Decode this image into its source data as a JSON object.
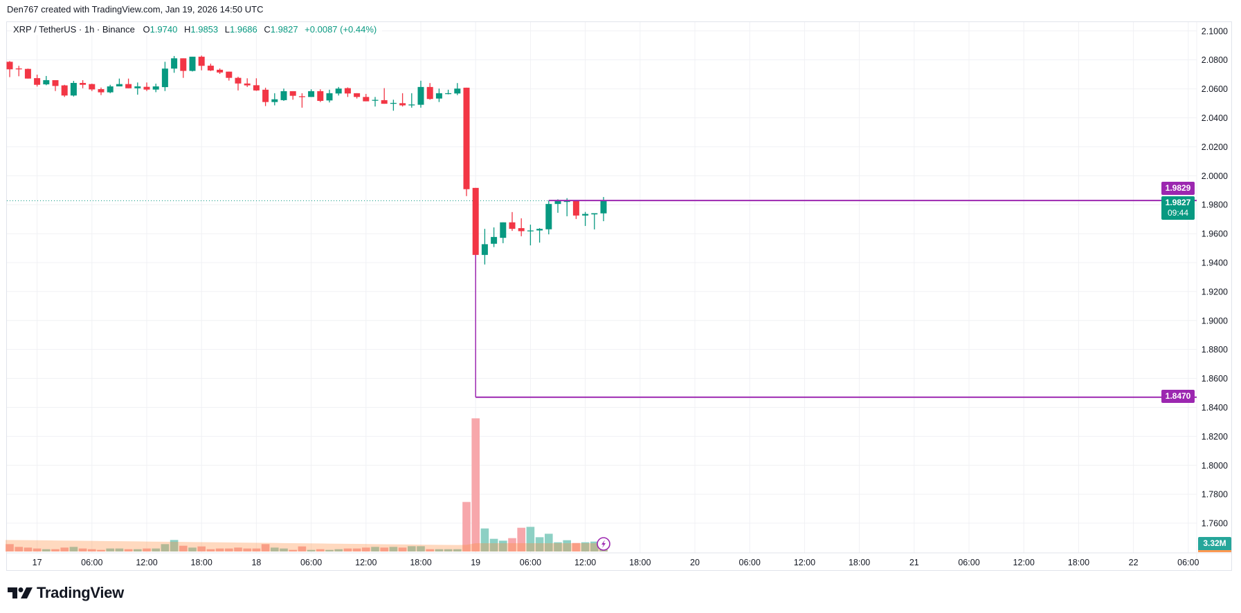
{
  "header": {
    "credit": "Den767 created with TradingView.com, Jan 19, 2026 14:50 UTC"
  },
  "legend": {
    "symbol": "XRP / TetherUS · 1h · Binance",
    "o_label": "O",
    "o": "1.9740",
    "h_label": "H",
    "h": "1.9853",
    "l_label": "L",
    "l": "1.9686",
    "c_label": "C",
    "c": "1.9827",
    "change": "+0.0087 (+0.44%)"
  },
  "badges": {
    "line_upper": "1.9829",
    "last_price": "1.9827",
    "countdown": "09:44",
    "line_lower": "1.8470",
    "volume": "3.32M"
  },
  "logo": {
    "text": "TradingView"
  },
  "colors": {
    "up": "#089981",
    "down": "#f23645",
    "volume_up": "#8dd0c4",
    "volume_down": "#f7a7ab",
    "volume_ma_area": "rgba(255,140,60,0.33)",
    "drawing": "#9c27b0",
    "grid": "#f0f1f4"
  },
  "chart_data": {
    "type": "candlestick",
    "interval": "1h",
    "ylim": [
      1.7395,
      2.1061
    ],
    "grid": true,
    "y_ticks": [
      "2.1000",
      "2.0800",
      "2.0600",
      "2.0400",
      "2.0200",
      "2.0000",
      "1.9800",
      "1.9600",
      "1.9400",
      "1.9200",
      "1.9000",
      "1.8800",
      "1.8600",
      "1.8400",
      "1.8200",
      "1.8000",
      "1.7800",
      "1.7600"
    ],
    "x_ticks": [
      {
        "label": "17",
        "t": "2026-01-17T00:00"
      },
      {
        "label": "06:00",
        "t": "2026-01-17T06:00"
      },
      {
        "label": "12:00",
        "t": "2026-01-17T12:00"
      },
      {
        "label": "18:00",
        "t": "2026-01-17T18:00"
      },
      {
        "label": "18",
        "t": "2026-01-18T00:00"
      },
      {
        "label": "06:00",
        "t": "2026-01-18T06:00"
      },
      {
        "label": "12:00",
        "t": "2026-01-18T12:00"
      },
      {
        "label": "18:00",
        "t": "2026-01-18T18:00"
      },
      {
        "label": "19",
        "t": "2026-01-19T00:00"
      },
      {
        "label": "06:00",
        "t": "2026-01-19T06:00"
      },
      {
        "label": "12:00",
        "t": "2026-01-19T12:00"
      },
      {
        "label": "18:00",
        "t": "2026-01-19T18:00"
      },
      {
        "label": "20",
        "t": "2026-01-20T00:00"
      },
      {
        "label": "06:00",
        "t": "2026-01-20T06:00"
      },
      {
        "label": "12:00",
        "t": "2026-01-20T12:00"
      },
      {
        "label": "18:00",
        "t": "2026-01-20T18:00"
      },
      {
        "label": "21",
        "t": "2026-01-21T00:00"
      },
      {
        "label": "06:00",
        "t": "2026-01-21T06:00"
      },
      {
        "label": "12:00",
        "t": "2026-01-21T12:00"
      },
      {
        "label": "18:00",
        "t": "2026-01-21T18:00"
      },
      {
        "label": "22",
        "t": "2026-01-22T00:00"
      },
      {
        "label": "06:00",
        "t": "2026-01-22T06:00"
      }
    ],
    "volume_unit": "M",
    "candles": [
      {
        "t": "2026-01-16T21:00",
        "o": 2.0787,
        "h": 2.0792,
        "l": 2.0681,
        "c": 2.0735,
        "v": 3.2
      },
      {
        "t": "2026-01-16T22:00",
        "o": 2.0741,
        "h": 2.0759,
        "l": 2.0687,
        "c": 2.0735,
        "v": 2.0
      },
      {
        "t": "2026-01-16T23:00",
        "o": 2.0738,
        "h": 2.074,
        "l": 2.0671,
        "c": 2.0671,
        "v": 1.7
      },
      {
        "t": "2026-01-17T00:00",
        "o": 2.0674,
        "h": 2.0698,
        "l": 2.0616,
        "c": 2.0628,
        "v": 1.3
      },
      {
        "t": "2026-01-17T01:00",
        "o": 2.0631,
        "h": 2.0689,
        "l": 2.0625,
        "c": 2.066,
        "v": 1.0
      },
      {
        "t": "2026-01-17T02:00",
        "o": 2.066,
        "h": 2.066,
        "l": 2.0585,
        "c": 2.062,
        "v": 1.0
      },
      {
        "t": "2026-01-17T03:00",
        "o": 2.0624,
        "h": 2.0628,
        "l": 2.0544,
        "c": 2.0554,
        "v": 1.7
      },
      {
        "t": "2026-01-17T04:00",
        "o": 2.0554,
        "h": 2.0655,
        "l": 2.0547,
        "c": 2.0641,
        "v": 2.0
      },
      {
        "t": "2026-01-17T05:00",
        "o": 2.0641,
        "h": 2.066,
        "l": 2.0604,
        "c": 2.0628,
        "v": 1.3
      },
      {
        "t": "2026-01-17T06:00",
        "o": 2.0633,
        "h": 2.0636,
        "l": 2.0585,
        "c": 2.0596,
        "v": 1.0
      },
      {
        "t": "2026-01-17T07:00",
        "o": 2.0598,
        "h": 2.0609,
        "l": 2.0557,
        "c": 2.0576,
        "v": 0.7
      },
      {
        "t": "2026-01-17T08:00",
        "o": 2.0576,
        "h": 2.0628,
        "l": 2.057,
        "c": 2.0617,
        "v": 1.3
      },
      {
        "t": "2026-01-17T09:00",
        "o": 2.0617,
        "h": 2.0671,
        "l": 2.0617,
        "c": 2.0633,
        "v": 1.3
      },
      {
        "t": "2026-01-17T10:00",
        "o": 2.0633,
        "h": 2.0671,
        "l": 2.0604,
        "c": 2.0604,
        "v": 1.0
      },
      {
        "t": "2026-01-17T11:00",
        "o": 2.0604,
        "h": 2.0644,
        "l": 2.056,
        "c": 2.0617,
        "v": 1.0
      },
      {
        "t": "2026-01-17T12:00",
        "o": 2.0614,
        "h": 2.0644,
        "l": 2.0585,
        "c": 2.0595,
        "v": 1.3
      },
      {
        "t": "2026-01-17T13:00",
        "o": 2.0595,
        "h": 2.0636,
        "l": 2.0577,
        "c": 2.0617,
        "v": 1.3
      },
      {
        "t": "2026-01-17T14:00",
        "o": 2.0612,
        "h": 2.0787,
        "l": 2.0585,
        "c": 2.074,
        "v": 3.2
      },
      {
        "t": "2026-01-17T15:00",
        "o": 2.074,
        "h": 2.0827,
        "l": 2.0711,
        "c": 2.0811,
        "v": 5.0
      },
      {
        "t": "2026-01-17T16:00",
        "o": 2.0811,
        "h": 2.0811,
        "l": 2.0676,
        "c": 2.0724,
        "v": 2.5
      },
      {
        "t": "2026-01-17T17:00",
        "o": 2.0724,
        "h": 2.0822,
        "l": 2.072,
        "c": 2.0822,
        "v": 1.7
      },
      {
        "t": "2026-01-17T18:00",
        "o": 2.0822,
        "h": 2.083,
        "l": 2.0728,
        "c": 2.0759,
        "v": 2.2
      },
      {
        "t": "2026-01-17T19:00",
        "o": 2.076,
        "h": 2.0774,
        "l": 2.0723,
        "c": 2.0727,
        "v": 1.0
      },
      {
        "t": "2026-01-17T20:00",
        "o": 2.0732,
        "h": 2.0741,
        "l": 2.0703,
        "c": 2.0713,
        "v": 1.3
      },
      {
        "t": "2026-01-17T21:00",
        "o": 2.0719,
        "h": 2.0719,
        "l": 2.0657,
        "c": 2.0676,
        "v": 1.3
      },
      {
        "t": "2026-01-17T22:00",
        "o": 2.0676,
        "h": 2.0684,
        "l": 2.0589,
        "c": 2.0637,
        "v": 1.7
      },
      {
        "t": "2026-01-17T23:00",
        "o": 2.0637,
        "h": 2.0673,
        "l": 2.0613,
        "c": 2.0624,
        "v": 1.3
      },
      {
        "t": "2026-01-18T00:00",
        "o": 2.0625,
        "h": 2.0673,
        "l": 2.0586,
        "c": 2.0589,
        "v": 1.3
      },
      {
        "t": "2026-01-18T01:00",
        "o": 2.0594,
        "h": 2.0608,
        "l": 2.0481,
        "c": 2.0509,
        "v": 3.2
      },
      {
        "t": "2026-01-18T02:00",
        "o": 2.0509,
        "h": 2.057,
        "l": 2.0486,
        "c": 2.0528,
        "v": 1.7
      },
      {
        "t": "2026-01-18T03:00",
        "o": 2.0522,
        "h": 2.0602,
        "l": 2.0517,
        "c": 2.0584,
        "v": 1.3
      },
      {
        "t": "2026-01-18T04:00",
        "o": 2.0584,
        "h": 2.0584,
        "l": 2.0525,
        "c": 2.0552,
        "v": 0.7
      },
      {
        "t": "2026-01-18T05:00",
        "o": 2.0549,
        "h": 2.057,
        "l": 2.047,
        "c": 2.0544,
        "v": 2.2
      },
      {
        "t": "2026-01-18T06:00",
        "o": 2.0544,
        "h": 2.0597,
        "l": 2.0544,
        "c": 2.0584,
        "v": 0.7
      },
      {
        "t": "2026-01-18T07:00",
        "o": 2.0584,
        "h": 2.0597,
        "l": 2.0509,
        "c": 2.0517,
        "v": 1.0
      },
      {
        "t": "2026-01-18T08:00",
        "o": 2.052,
        "h": 2.0594,
        "l": 2.0506,
        "c": 2.057,
        "v": 0.7
      },
      {
        "t": "2026-01-18T09:00",
        "o": 2.0568,
        "h": 2.0613,
        "l": 2.0554,
        "c": 2.0602,
        "v": 1.0
      },
      {
        "t": "2026-01-18T10:00",
        "o": 2.0605,
        "h": 2.061,
        "l": 2.0544,
        "c": 2.0568,
        "v": 1.3
      },
      {
        "t": "2026-01-18T11:00",
        "o": 2.057,
        "h": 2.057,
        "l": 2.0533,
        "c": 2.0544,
        "v": 1.3
      },
      {
        "t": "2026-01-18T12:00",
        "o": 2.0544,
        "h": 2.0565,
        "l": 2.0514,
        "c": 2.0514,
        "v": 1.7
      },
      {
        "t": "2026-01-18T13:00",
        "o": 2.0521,
        "h": 2.0544,
        "l": 2.0478,
        "c": 2.0524,
        "v": 2.0
      },
      {
        "t": "2026-01-18T14:00",
        "o": 2.0522,
        "h": 2.0605,
        "l": 2.0497,
        "c": 2.0497,
        "v": 1.7
      },
      {
        "t": "2026-01-18T15:00",
        "o": 2.05,
        "h": 2.0525,
        "l": 2.0449,
        "c": 2.0503,
        "v": 2.0
      },
      {
        "t": "2026-01-18T16:00",
        "o": 2.0501,
        "h": 2.057,
        "l": 2.0478,
        "c": 2.0486,
        "v": 1.7
      },
      {
        "t": "2026-01-18T17:00",
        "o": 2.0489,
        "h": 2.057,
        "l": 2.047,
        "c": 2.0492,
        "v": 2.3
      },
      {
        "t": "2026-01-18T18:00",
        "o": 2.049,
        "h": 2.0656,
        "l": 2.047,
        "c": 2.0613,
        "v": 2.3
      },
      {
        "t": "2026-01-18T19:00",
        "o": 2.0613,
        "h": 2.064,
        "l": 2.0525,
        "c": 2.053,
        "v": 1.0
      },
      {
        "t": "2026-01-18T20:00",
        "o": 2.0533,
        "h": 2.0602,
        "l": 2.0509,
        "c": 2.057,
        "v": 1.0
      },
      {
        "t": "2026-01-18T21:00",
        "o": 2.0567,
        "h": 2.0594,
        "l": 2.0562,
        "c": 2.057,
        "v": 1.0
      },
      {
        "t": "2026-01-18T22:00",
        "o": 2.0568,
        "h": 2.064,
        "l": 2.0557,
        "c": 2.0602,
        "v": 1.0
      },
      {
        "t": "2026-01-18T23:00",
        "o": 2.0608,
        "h": 2.0608,
        "l": 1.9859,
        "c": 1.9907,
        "v": 21.5
      },
      {
        "t": "2026-01-19T00:00",
        "o": 1.9916,
        "h": 1.9916,
        "l": 1.9304,
        "c": 1.9453,
        "v": 57.8
      },
      {
        "t": "2026-01-19T01:00",
        "o": 1.9453,
        "h": 1.9633,
        "l": 1.9387,
        "c": 1.9527,
        "v": 10.0
      },
      {
        "t": "2026-01-19T02:00",
        "o": 1.953,
        "h": 1.9643,
        "l": 1.9507,
        "c": 1.9577,
        "v": 5.5
      },
      {
        "t": "2026-01-19T03:00",
        "o": 1.9571,
        "h": 1.9678,
        "l": 1.9534,
        "c": 1.9678,
        "v": 4.7
      },
      {
        "t": "2026-01-19T04:00",
        "o": 1.9678,
        "h": 1.9749,
        "l": 1.9619,
        "c": 1.9633,
        "v": 5.8
      },
      {
        "t": "2026-01-19T05:00",
        "o": 1.9638,
        "h": 1.9706,
        "l": 1.9582,
        "c": 1.9617,
        "v": 10.3
      },
      {
        "t": "2026-01-19T06:00",
        "o": 1.9619,
        "h": 1.9662,
        "l": 1.9519,
        "c": 1.9622,
        "v": 10.7
      },
      {
        "t": "2026-01-19T07:00",
        "o": 1.9622,
        "h": 1.9638,
        "l": 1.9538,
        "c": 1.9633,
        "v": 6.2
      },
      {
        "t": "2026-01-19T08:00",
        "o": 1.963,
        "h": 1.9829,
        "l": 1.9595,
        "c": 1.9805,
        "v": 7.7
      },
      {
        "t": "2026-01-19T09:00",
        "o": 1.9805,
        "h": 1.9837,
        "l": 1.9744,
        "c": 1.9825,
        "v": 4.0
      },
      {
        "t": "2026-01-19T10:00",
        "o": 1.9819,
        "h": 1.9845,
        "l": 1.972,
        "c": 1.9825,
        "v": 4.9
      },
      {
        "t": "2026-01-19T11:00",
        "o": 1.9825,
        "h": 1.9825,
        "l": 1.9701,
        "c": 1.9725,
        "v": 3.7
      },
      {
        "t": "2026-01-19T12:00",
        "o": 1.9725,
        "h": 1.975,
        "l": 1.9653,
        "c": 1.9736,
        "v": 4.0
      },
      {
        "t": "2026-01-19T13:00",
        "o": 1.9733,
        "h": 1.9741,
        "l": 1.9629,
        "c": 1.9741,
        "v": 4.3
      },
      {
        "t": "2026-01-19T14:00",
        "o": 1.974,
        "h": 1.9853,
        "l": 1.9686,
        "c": 1.9827,
        "v": 3.32
      }
    ],
    "volume_ma": [
      5.0,
      4.96,
      4.91,
      4.87,
      4.82,
      4.78,
      4.73,
      4.69,
      4.64,
      4.6,
      4.55,
      4.51,
      4.46,
      4.42,
      4.37,
      4.33,
      4.28,
      4.24,
      4.19,
      4.15,
      4.1,
      4.06,
      4.01,
      3.97,
      3.92,
      3.88,
      3.83,
      3.79,
      3.74,
      3.7,
      3.65,
      3.61,
      3.56,
      3.52,
      3.47,
      3.43,
      3.38,
      3.34,
      3.29,
      3.25,
      3.2,
      3.16,
      3.11,
      3.07,
      3.02,
      2.98,
      2.93,
      2.89,
      2.84,
      2.8,
      2.9,
      3.6,
      3.6,
      3.6,
      3.6,
      3.6,
      3.6,
      3.6,
      3.6,
      3.6,
      3.6,
      3.6,
      3.6,
      3.6,
      3.6,
      3.6
    ],
    "last_price": 1.9827,
    "drawings": [
      {
        "kind": "horizontal-ray",
        "price": 1.9829,
        "from": "2026-01-19T08:00"
      },
      {
        "kind": "horizontal-ray",
        "price": 1.847,
        "from": "2026-01-19T00:00"
      },
      {
        "kind": "vertical-segment",
        "t": "2026-01-19T00:00",
        "from_price": 1.9453,
        "to_price": 1.847
      }
    ]
  }
}
